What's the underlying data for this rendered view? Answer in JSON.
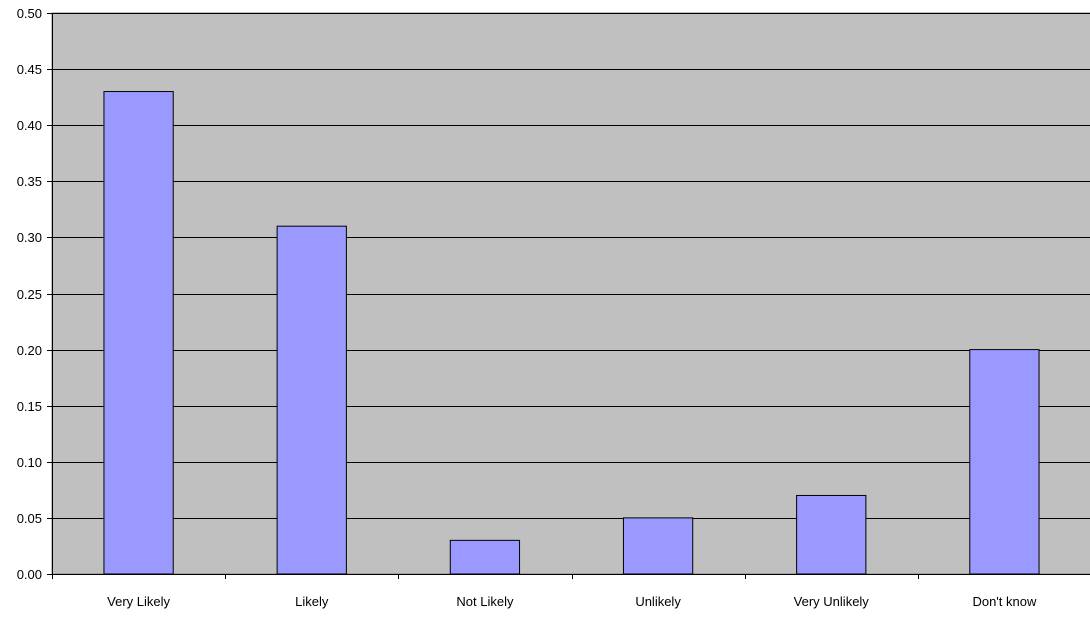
{
  "chart_data": {
    "type": "bar",
    "categories": [
      "Very Likely",
      "Likely",
      "Not Likely",
      "Unlikely",
      "Very Unlikely",
      "Don't know"
    ],
    "series": [
      {
        "values": [
          0.43,
          0.31,
          0.03,
          0.05,
          0.07,
          0.2
        ]
      }
    ],
    "title": "",
    "xlabel": "",
    "ylabel": "",
    "ylim": [
      0,
      0.5
    ],
    "y_ticks": [
      "0.00",
      "0.05",
      "0.10",
      "0.15",
      "0.20",
      "0.25",
      "0.30",
      "0.35",
      "0.40",
      "0.45",
      "0.50"
    ],
    "grid": true,
    "legend": "none",
    "colors": {
      "plot_background": "#c0c0c0",
      "bar_fill": "#9999ff",
      "bar_stroke": "#000000",
      "gridline": "#000000"
    }
  }
}
